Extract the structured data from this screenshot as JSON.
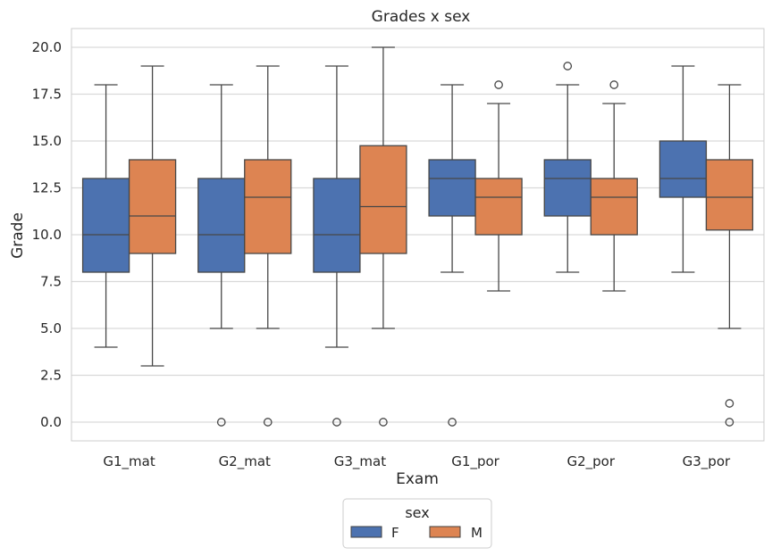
{
  "chart_data": {
    "type": "boxplot",
    "title": "Grades x sex",
    "xlabel": "Exam",
    "ylabel": "Grade",
    "ylim": [
      -1,
      21
    ],
    "yticks": [
      "0.0",
      "2.5",
      "5.0",
      "7.5",
      "10.0",
      "12.5",
      "15.0",
      "17.5",
      "20.0"
    ],
    "grid": "horizontal",
    "legend": {
      "title": "sex",
      "placement": "bottom-center"
    },
    "categories": [
      "G1_mat",
      "G2_mat",
      "G3_mat",
      "G1_por",
      "G2_por",
      "G3_por"
    ],
    "series": [
      {
        "name": "F",
        "color": "#4c72b0",
        "boxes": [
          {
            "q1": 8,
            "median": 10,
            "q3": 13,
            "whisker_low": 4,
            "whisker_high": 18,
            "outliers": []
          },
          {
            "q1": 8,
            "median": 10,
            "q3": 13,
            "whisker_low": 5,
            "whisker_high": 18,
            "outliers": [
              0
            ]
          },
          {
            "q1": 8,
            "median": 10,
            "q3": 13,
            "whisker_low": 4,
            "whisker_high": 19,
            "outliers": [
              0
            ]
          },
          {
            "q1": 11,
            "median": 13,
            "q3": 14,
            "whisker_low": 8,
            "whisker_high": 18,
            "outliers": [
              0
            ]
          },
          {
            "q1": 11,
            "median": 13,
            "q3": 14,
            "whisker_low": 8,
            "whisker_high": 18,
            "outliers": [
              19
            ]
          },
          {
            "q1": 12,
            "median": 13,
            "q3": 15,
            "whisker_low": 8,
            "whisker_high": 19,
            "outliers": []
          }
        ]
      },
      {
        "name": "M",
        "color": "#dd8452",
        "boxes": [
          {
            "q1": 9,
            "median": 11,
            "q3": 14,
            "whisker_low": 3,
            "whisker_high": 19,
            "outliers": []
          },
          {
            "q1": 9,
            "median": 12,
            "q3": 14,
            "whisker_low": 5,
            "whisker_high": 19,
            "outliers": [
              0
            ]
          },
          {
            "q1": 9,
            "median": 11.5,
            "q3": 14.75,
            "whisker_low": 5,
            "whisker_high": 20,
            "outliers": [
              0
            ]
          },
          {
            "q1": 10,
            "median": 12,
            "q3": 13,
            "whisker_low": 7,
            "whisker_high": 17,
            "outliers": [
              18
            ]
          },
          {
            "q1": 10,
            "median": 12,
            "q3": 13,
            "whisker_low": 7,
            "whisker_high": 17,
            "outliers": [
              18
            ]
          },
          {
            "q1": 10.25,
            "median": 12,
            "q3": 14,
            "whisker_low": 5,
            "whisker_high": 18,
            "outliers": [
              0,
              1
            ]
          }
        ]
      }
    ]
  }
}
